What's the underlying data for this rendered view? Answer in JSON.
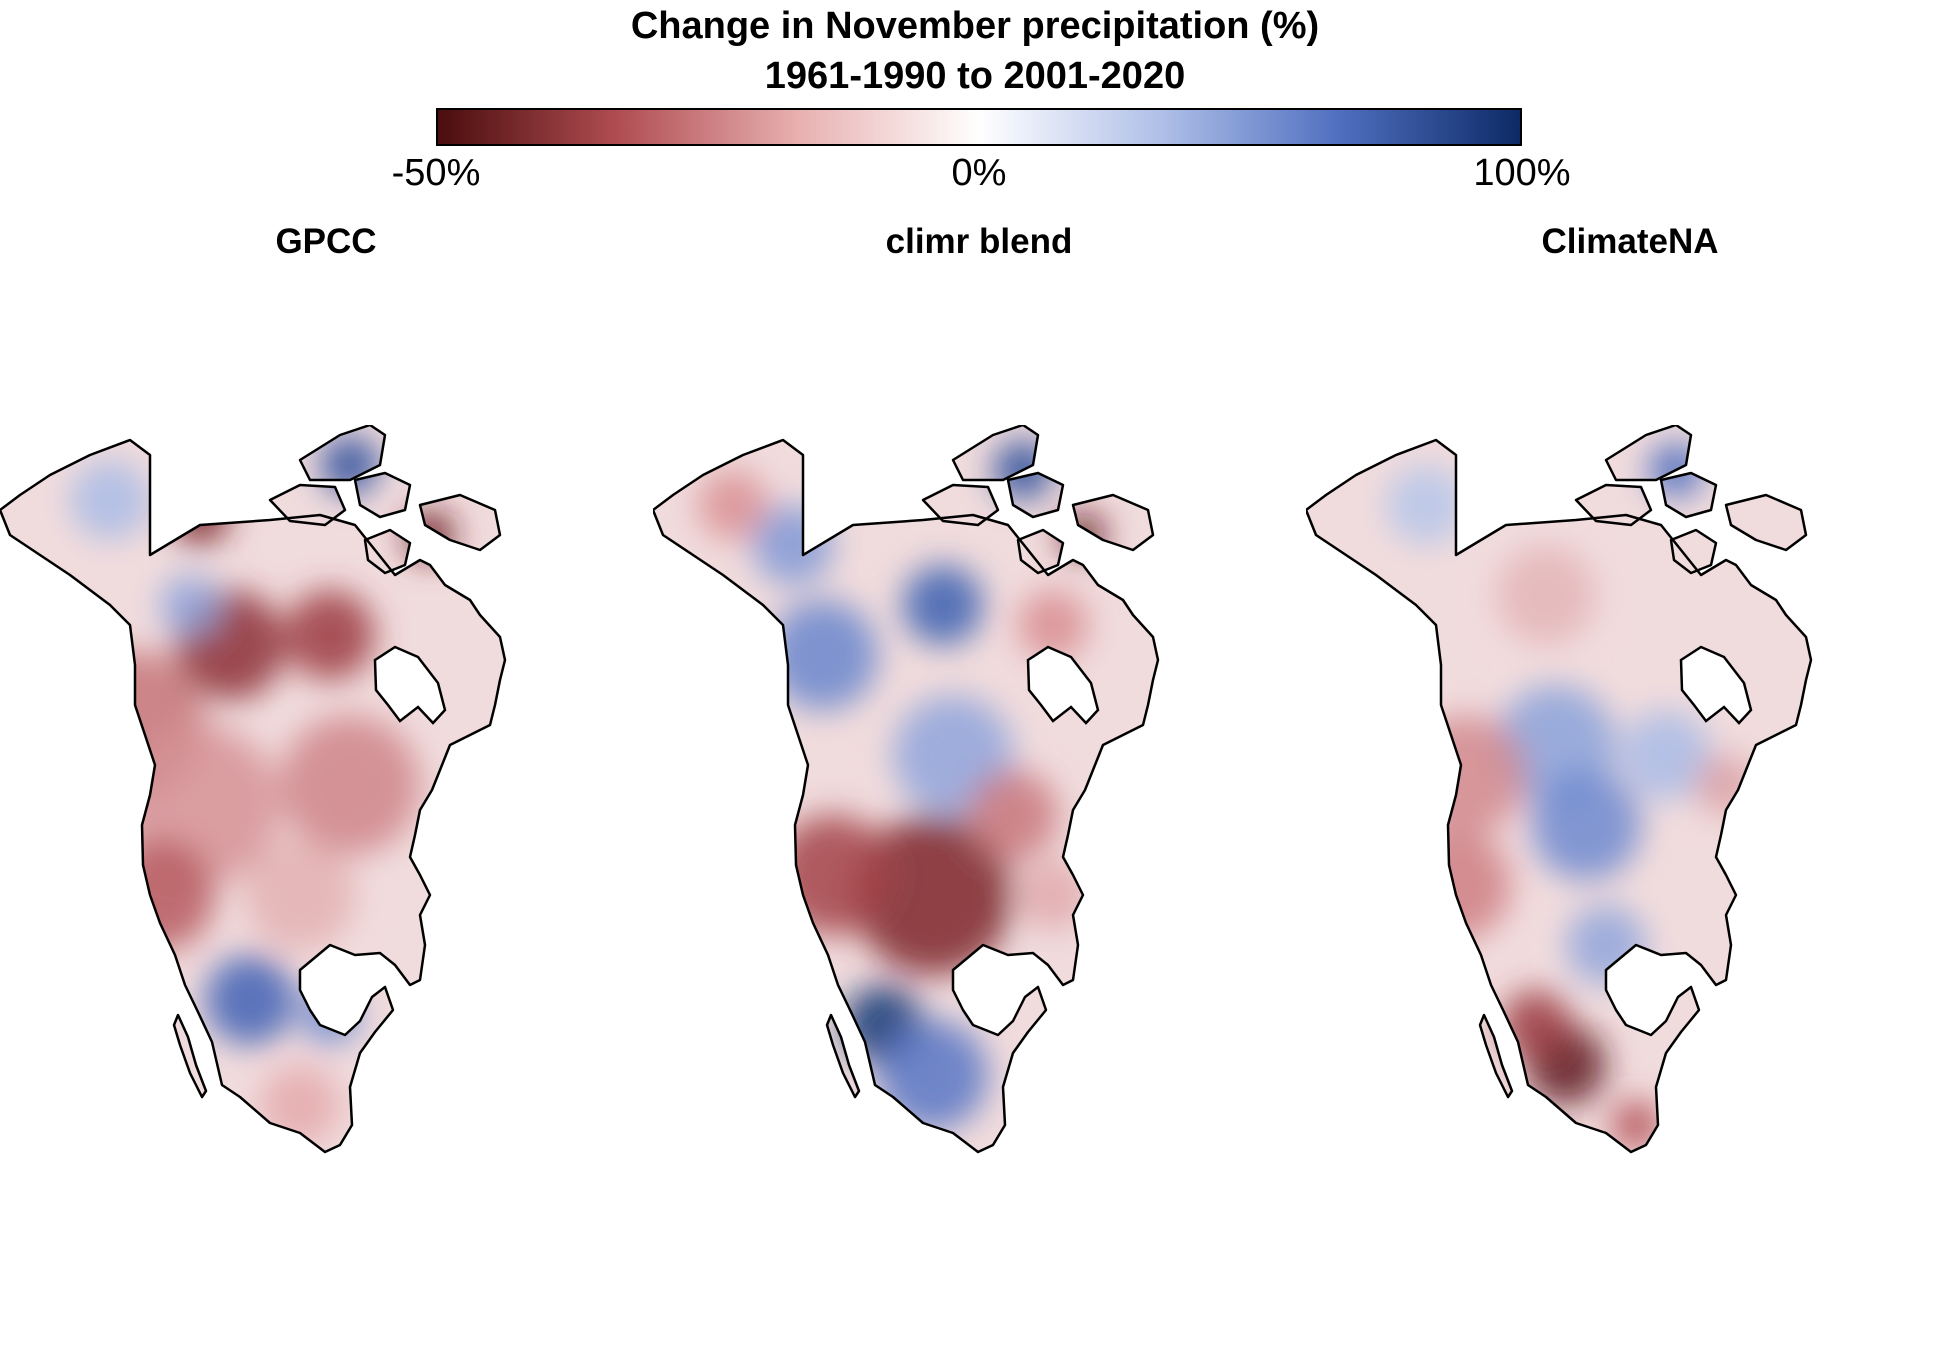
{
  "title": "Change in November precipitation (%)",
  "subtitle": "1961-1990 to 2001-2020",
  "colorbar": {
    "tick_labels": [
      "-50%",
      "0%",
      "100%"
    ],
    "range": [
      -50,
      100
    ],
    "colors": [
      "#4a0d0d",
      "#b04d52",
      "#e8b0b0",
      "#ffffff",
      "#b0c0e8",
      "#4f6fbf",
      "#0d2a66"
    ]
  },
  "panels": [
    {
      "title": "GPCC"
    },
    {
      "title": "climr blend"
    },
    {
      "title": "ClimateNA"
    }
  ]
}
